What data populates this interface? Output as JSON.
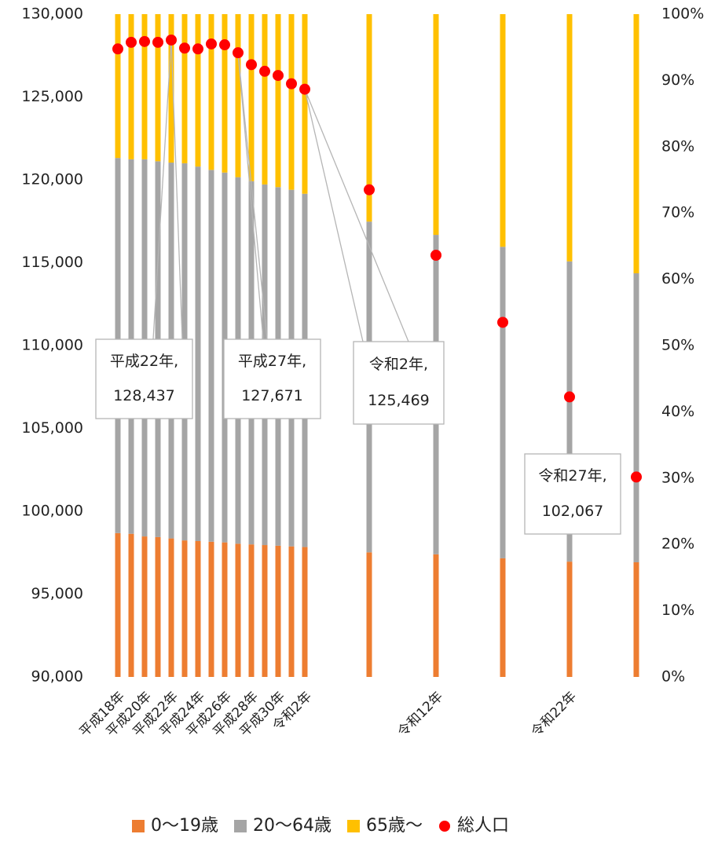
{
  "chart_data": {
    "type": "stacked_bar_with_dots",
    "categories": [
      "平成18年",
      null,
      "平成20年",
      null,
      "平成22年",
      null,
      "平成24年",
      null,
      "平成26年",
      null,
      "平成28年",
      null,
      "平成30年",
      null,
      "令和2年",
      null,
      "令和12年",
      null,
      "令和22年",
      null
    ],
    "series": [
      {
        "name": "0〜19歳",
        "color": "#ED7D31",
        "axis": "y2",
        "values": [
          21.7,
          21.6,
          21.2,
          21.1,
          20.9,
          20.6,
          20.5,
          20.4,
          20.3,
          20.1,
          20.0,
          19.9,
          19.8,
          19.7,
          19.6,
          18.8,
          18.5,
          17.9,
          17.4,
          17.3
        ]
      },
      {
        "name": "20〜64歳",
        "color": "#A5A5A5",
        "axis": "y2",
        "values": [
          56.6,
          56.5,
          56.9,
          56.7,
          56.7,
          56.9,
          56.5,
          56.1,
          55.8,
          55.3,
          54.8,
          54.4,
          54.1,
          53.8,
          53.3,
          49.9,
          48.2,
          47.0,
          45.3,
          43.6
        ]
      },
      {
        "name": "65歳〜",
        "color": "#FFC000",
        "axis": "y2",
        "values": [
          21.7,
          21.9,
          21.9,
          22.2,
          22.4,
          22.5,
          23.0,
          23.5,
          23.9,
          24.6,
          25.2,
          25.7,
          26.1,
          26.5,
          27.1,
          31.3,
          33.3,
          35.1,
          37.3,
          39.1
        ]
      },
      {
        "name": "総人口",
        "color": "#FF0000",
        "values": [
          127900,
          128300,
          128350,
          128300,
          128437,
          127950,
          127900,
          128200,
          128150,
          127671,
          126950,
          126550,
          126300,
          125800,
          125469,
          119400,
          115450,
          111400,
          106900,
          102067
        ],
        "point_labels": [
          null,
          null,
          null,
          null,
          "平成22年,",
          null,
          null,
          null,
          null,
          "平成27年,",
          null,
          null,
          null,
          null,
          "令和2年,",
          null,
          null,
          null,
          null,
          "令和27年,"
        ],
        "value_labels": [
          null,
          null,
          null,
          null,
          "128,437",
          null,
          null,
          null,
          null,
          "127,671",
          null,
          null,
          null,
          null,
          "125,469",
          null,
          null,
          null,
          null,
          "102,067"
        ]
      }
    ],
    "ylim": [
      90000,
      130000
    ],
    "yticks": [
      {
        "value": 90000,
        "label": "90,000"
      },
      {
        "value": 95000,
        "label": "95,000"
      },
      {
        "value": 100000,
        "label": "100,000"
      },
      {
        "value": 105000,
        "label": "105,000"
      },
      {
        "value": 110000,
        "label": "110,000"
      },
      {
        "value": 115000,
        "label": "115,000"
      },
      {
        "value": 120000,
        "label": "120,000"
      },
      {
        "value": 125000,
        "label": "125,000"
      },
      {
        "value": 130000,
        "label": "130,000"
      }
    ],
    "y2lim": [
      0,
      100
    ],
    "y2ticks": [
      {
        "value": 0,
        "label": "0%"
      },
      {
        "value": 10,
        "label": "10%"
      },
      {
        "value": 20,
        "label": "20%"
      },
      {
        "value": 30,
        "label": "30%"
      },
      {
        "value": 40,
        "label": "40%"
      },
      {
        "value": 50,
        "label": "50%"
      },
      {
        "value": 60,
        "label": "60%"
      },
      {
        "value": 70,
        "label": "70%"
      },
      {
        "value": 80,
        "label": "80%"
      },
      {
        "value": 90,
        "label": "90%"
      },
      {
        "value": 100,
        "label": "100%"
      }
    ],
    "legend": "bottom"
  }
}
